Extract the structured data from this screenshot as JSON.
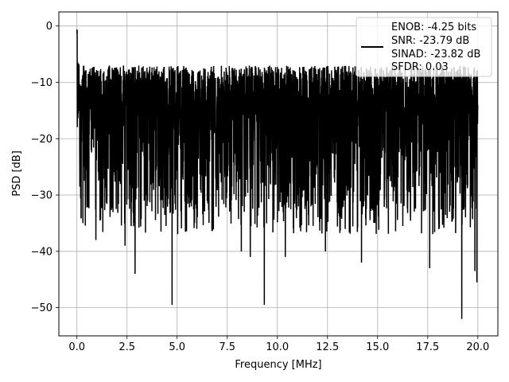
{
  "chart_data": {
    "type": "line",
    "xlabel": "Frequency [MHz]",
    "ylabel": "PSD [dB]",
    "xlim": [
      -0.9,
      21.0
    ],
    "ylim": [
      -55,
      2.5
    ],
    "xticks": [
      0.0,
      2.5,
      5.0,
      7.5,
      10.0,
      12.5,
      15.0,
      17.5,
      20.0
    ],
    "xtick_labels": [
      "0.0",
      "2.5",
      "5.0",
      "7.5",
      "10.0",
      "12.5",
      "15.0",
      "17.5",
      "20.0"
    ],
    "yticks": [
      0,
      -10,
      -20,
      -30,
      -40,
      -50
    ],
    "ytick_labels": [
      "0",
      "−10",
      "−20",
      "−30",
      "−40",
      "−50"
    ],
    "grid": true,
    "legend_position": "top-right",
    "series": [
      {
        "name": "ENOB: -4.25 bits\nSNR: -23.79 dB\nSINAD: -23.82 dB\nSFDR: 0.03",
        "legend_lines": [
          "ENOB: -4.25 bits",
          "SNR: -23.79 dB",
          "SINAD: -23.82 dB",
          "SFDR: 0.03"
        ],
        "color": "#000000",
        "x_range": [
          0.0,
          20.0
        ],
        "peak": {
          "x": 0.0,
          "y": 0.0
        },
        "noise_envelope": {
          "upper": -7,
          "lower": -33,
          "typical_mean": -18
        },
        "notable_dips": [
          {
            "x": 0.3,
            "y": -35
          },
          {
            "x": 0.95,
            "y": -38
          },
          {
            "x": 2.4,
            "y": -39
          },
          {
            "x": 2.9,
            "y": -44
          },
          {
            "x": 4.75,
            "y": -49.5
          },
          {
            "x": 8.2,
            "y": -40
          },
          {
            "x": 8.65,
            "y": -41
          },
          {
            "x": 9.35,
            "y": -49.5
          },
          {
            "x": 10.4,
            "y": -41
          },
          {
            "x": 12.4,
            "y": -40
          },
          {
            "x": 14.2,
            "y": -42
          },
          {
            "x": 17.6,
            "y": -43
          },
          {
            "x": 19.2,
            "y": -52
          },
          {
            "x": 19.85,
            "y": -43.5
          },
          {
            "x": 19.95,
            "y": -45.5
          }
        ]
      }
    ]
  }
}
